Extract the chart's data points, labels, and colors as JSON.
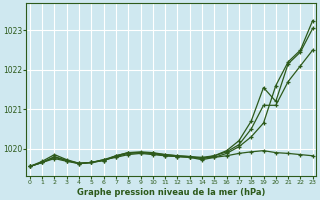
{
  "title": "Graphe pression niveau de la mer (hPa)",
  "bg_color": "#cfe8f0",
  "grid_color": "#ffffff",
  "line_color": "#2d5a1b",
  "x_ticks": [
    0,
    1,
    2,
    3,
    4,
    5,
    6,
    7,
    8,
    9,
    10,
    11,
    12,
    13,
    14,
    15,
    16,
    17,
    18,
    19,
    20,
    21,
    22,
    23
  ],
  "ylim": [
    1019.3,
    1023.7
  ],
  "yticks": [
    1020,
    1021,
    1022,
    1023
  ],
  "series": [
    [
      1019.55,
      1019.65,
      1019.75,
      1019.68,
      1019.62,
      1019.65,
      1019.72,
      1019.78,
      1019.85,
      1019.88,
      1019.85,
      1019.82,
      1019.8,
      1019.78,
      1019.76,
      1019.78,
      1019.82,
      1019.88,
      1019.92,
      1019.95,
      1019.9,
      1019.88,
      1019.85,
      1019.82
    ],
    [
      1019.55,
      1019.65,
      1019.78,
      1019.7,
      1019.63,
      1019.65,
      1019.7,
      1019.8,
      1019.88,
      1019.9,
      1019.88,
      1019.85,
      1019.82,
      1019.8,
      1019.78,
      1019.82,
      1019.92,
      1020.1,
      1020.5,
      1021.1,
      1021.1,
      1021.7,
      1022.1,
      1022.5
    ],
    [
      1019.55,
      1019.68,
      1019.85,
      1019.72,
      1019.63,
      1019.65,
      1019.72,
      1019.82,
      1019.9,
      1019.92,
      1019.9,
      1019.85,
      1019.82,
      1019.8,
      1019.75,
      1019.82,
      1019.95,
      1020.2,
      1020.7,
      1021.55,
      1021.2,
      1022.15,
      1022.45,
      1023.05
    ],
    [
      1019.55,
      1019.65,
      1019.8,
      1019.7,
      1019.62,
      1019.65,
      1019.7,
      1019.82,
      1019.9,
      1019.9,
      1019.88,
      1019.82,
      1019.8,
      1019.78,
      1019.72,
      1019.78,
      1019.88,
      1020.05,
      1020.3,
      1020.65,
      1021.6,
      1022.2,
      1022.5,
      1023.25
    ]
  ]
}
